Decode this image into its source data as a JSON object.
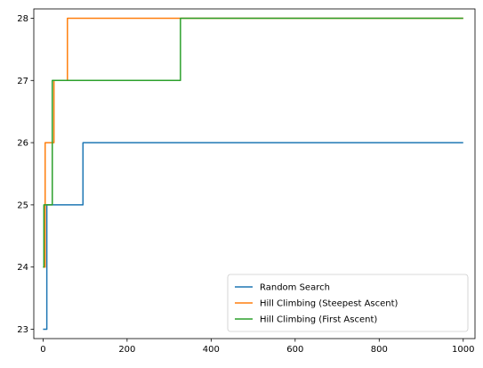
{
  "chart_data": {
    "type": "line",
    "title": "",
    "xlabel": "",
    "ylabel": "",
    "xlim": [
      -22,
      1028
    ],
    "ylim": [
      22.85,
      28.15
    ],
    "xticks": [
      0,
      200,
      400,
      600,
      800,
      1000
    ],
    "yticks": [
      23,
      24,
      25,
      26,
      27,
      28
    ],
    "grid": false,
    "legend_position": "lower-right",
    "series": [
      {
        "name": "Random Search",
        "color": "#1f77b4",
        "x": [
          0,
          9,
          9,
          95,
          95,
          1000
        ],
        "y": [
          23,
          23,
          25,
          25,
          26,
          26
        ]
      },
      {
        "name": "Hill Climbing (Steepest Ascent)",
        "color": "#ff7f0e",
        "x": [
          0,
          5,
          5,
          26,
          26,
          58,
          58,
          1000
        ],
        "y": [
          24,
          24,
          26,
          26,
          27,
          27,
          28,
          28
        ]
      },
      {
        "name": "Hill Climbing (First Ascent)",
        "color": "#2ca02c",
        "x": [
          0,
          2,
          2,
          22,
          22,
          327,
          327,
          1000
        ],
        "y": [
          24,
          24,
          25,
          25,
          27,
          27,
          28,
          28
        ]
      }
    ]
  }
}
